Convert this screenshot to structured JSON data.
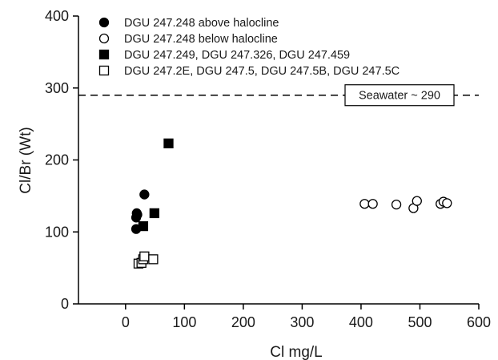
{
  "chart_data": {
    "type": "scatter",
    "title": "",
    "xlabel": "Cl mg/L",
    "ylabel": "Cl/Br (Wt)",
    "xlim": [
      -80,
      600
    ],
    "ylim": [
      0,
      400
    ],
    "x_ticks": [
      0,
      100,
      200,
      300,
      400,
      500,
      600
    ],
    "x_tick_labels": [
      "0",
      "100",
      "200",
      "300",
      "400",
      "500",
      "600"
    ],
    "y_ticks": [
      0,
      100,
      200,
      300,
      400
    ],
    "y_tick_labels": [
      "0",
      "100",
      "200",
      "300",
      "400"
    ],
    "grid": false,
    "legend_position": "top-left",
    "reference_line": {
      "y": 290,
      "style": "dashed",
      "label": "Seawater ~ 290"
    },
    "series": [
      {
        "name": "DGU 247.248 above halocline",
        "marker": "circle",
        "filled": true,
        "points": [
          {
            "x": 18,
            "y": 104
          },
          {
            "x": 18,
            "y": 120
          },
          {
            "x": 19,
            "y": 126
          },
          {
            "x": 20,
            "y": 124
          },
          {
            "x": 32,
            "y": 152
          }
        ]
      },
      {
        "name": "DGU 247.248 below halocline",
        "marker": "circle",
        "filled": false,
        "points": [
          {
            "x": 406,
            "y": 139
          },
          {
            "x": 420,
            "y": 139
          },
          {
            "x": 460,
            "y": 138
          },
          {
            "x": 489,
            "y": 133
          },
          {
            "x": 495,
            "y": 143
          },
          {
            "x": 535,
            "y": 139
          },
          {
            "x": 540,
            "y": 142
          },
          {
            "x": 546,
            "y": 140
          }
        ]
      },
      {
        "name": "DGU 247.249, DGU 247.326, DGU 247.459",
        "marker": "square",
        "filled": true,
        "points": [
          {
            "x": 30,
            "y": 108
          },
          {
            "x": 49,
            "y": 126
          },
          {
            "x": 73,
            "y": 223
          }
        ]
      },
      {
        "name": "DGU 247.2E, DGU 247.5, DGU 247.5B, DGU 247.5C",
        "marker": "square",
        "filled": false,
        "points": [
          {
            "x": 22,
            "y": 56
          },
          {
            "x": 27,
            "y": 57
          },
          {
            "x": 30,
            "y": 62
          },
          {
            "x": 32,
            "y": 66
          },
          {
            "x": 47,
            "y": 62
          }
        ]
      }
    ]
  }
}
